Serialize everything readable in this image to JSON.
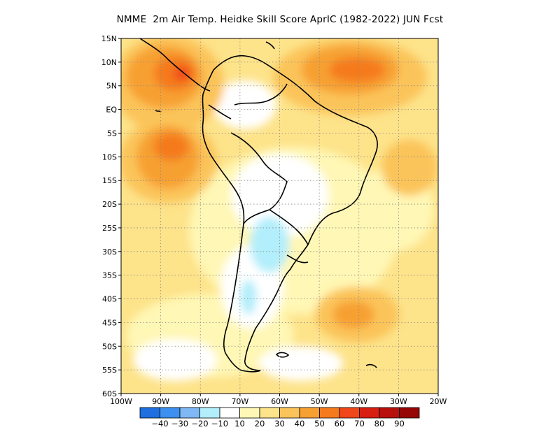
{
  "title": "NMME  2m Air Temp. Heidke Skill Score AprIC (1982-2022) JUN Fcst",
  "lat_labels": [
    "15N",
    "10N",
    "5N",
    "EQ",
    "5S",
    "10S",
    "15S",
    "20S",
    "25S",
    "30S",
    "35S",
    "40S",
    "45S",
    "50S",
    "55S",
    "60S"
  ],
  "lon_labels": [
    "100W",
    "90W",
    "80W",
    "70W",
    "60W",
    "50W",
    "40W",
    "30W",
    "20W"
  ],
  "colorbar": {
    "labels": [
      "-40",
      "-30",
      "-20",
      "-10",
      "10",
      "20",
      "30",
      "40",
      "50",
      "60",
      "70",
      "80",
      "90"
    ],
    "colors": [
      "#1f6fe0",
      "#3d8ff0",
      "#7fb8f5",
      "#b2eefb",
      "#ffffff",
      "#fff7b5",
      "#fde38a",
      "#fbc45a",
      "#f7a032",
      "#f57a1e",
      "#f0461a",
      "#d81f12",
      "#b80f0c",
      "#960606"
    ]
  },
  "chart_data": {
    "type": "heatmap",
    "title": "NMME  2m Air Temp. Heidke Skill Score AprIC (1982-2022) JUN Fcst",
    "xlim": [
      -100,
      -20
    ],
    "ylim": [
      -60,
      15
    ],
    "x_ticks": [
      "100W",
      "90W",
      "80W",
      "70W",
      "60W",
      "50W",
      "40W",
      "30W",
      "20W"
    ],
    "y_ticks": [
      "15N",
      "10N",
      "5N",
      "EQ",
      "5S",
      "10S",
      "15S",
      "20S",
      "25S",
      "30S",
      "35S",
      "40S",
      "45S",
      "50S",
      "55S",
      "60S"
    ],
    "colorbar_levels": [
      -40,
      -30,
      -20,
      -10,
      10,
      20,
      30,
      40,
      50,
      60,
      70,
      80,
      90
    ],
    "grid": true
  }
}
